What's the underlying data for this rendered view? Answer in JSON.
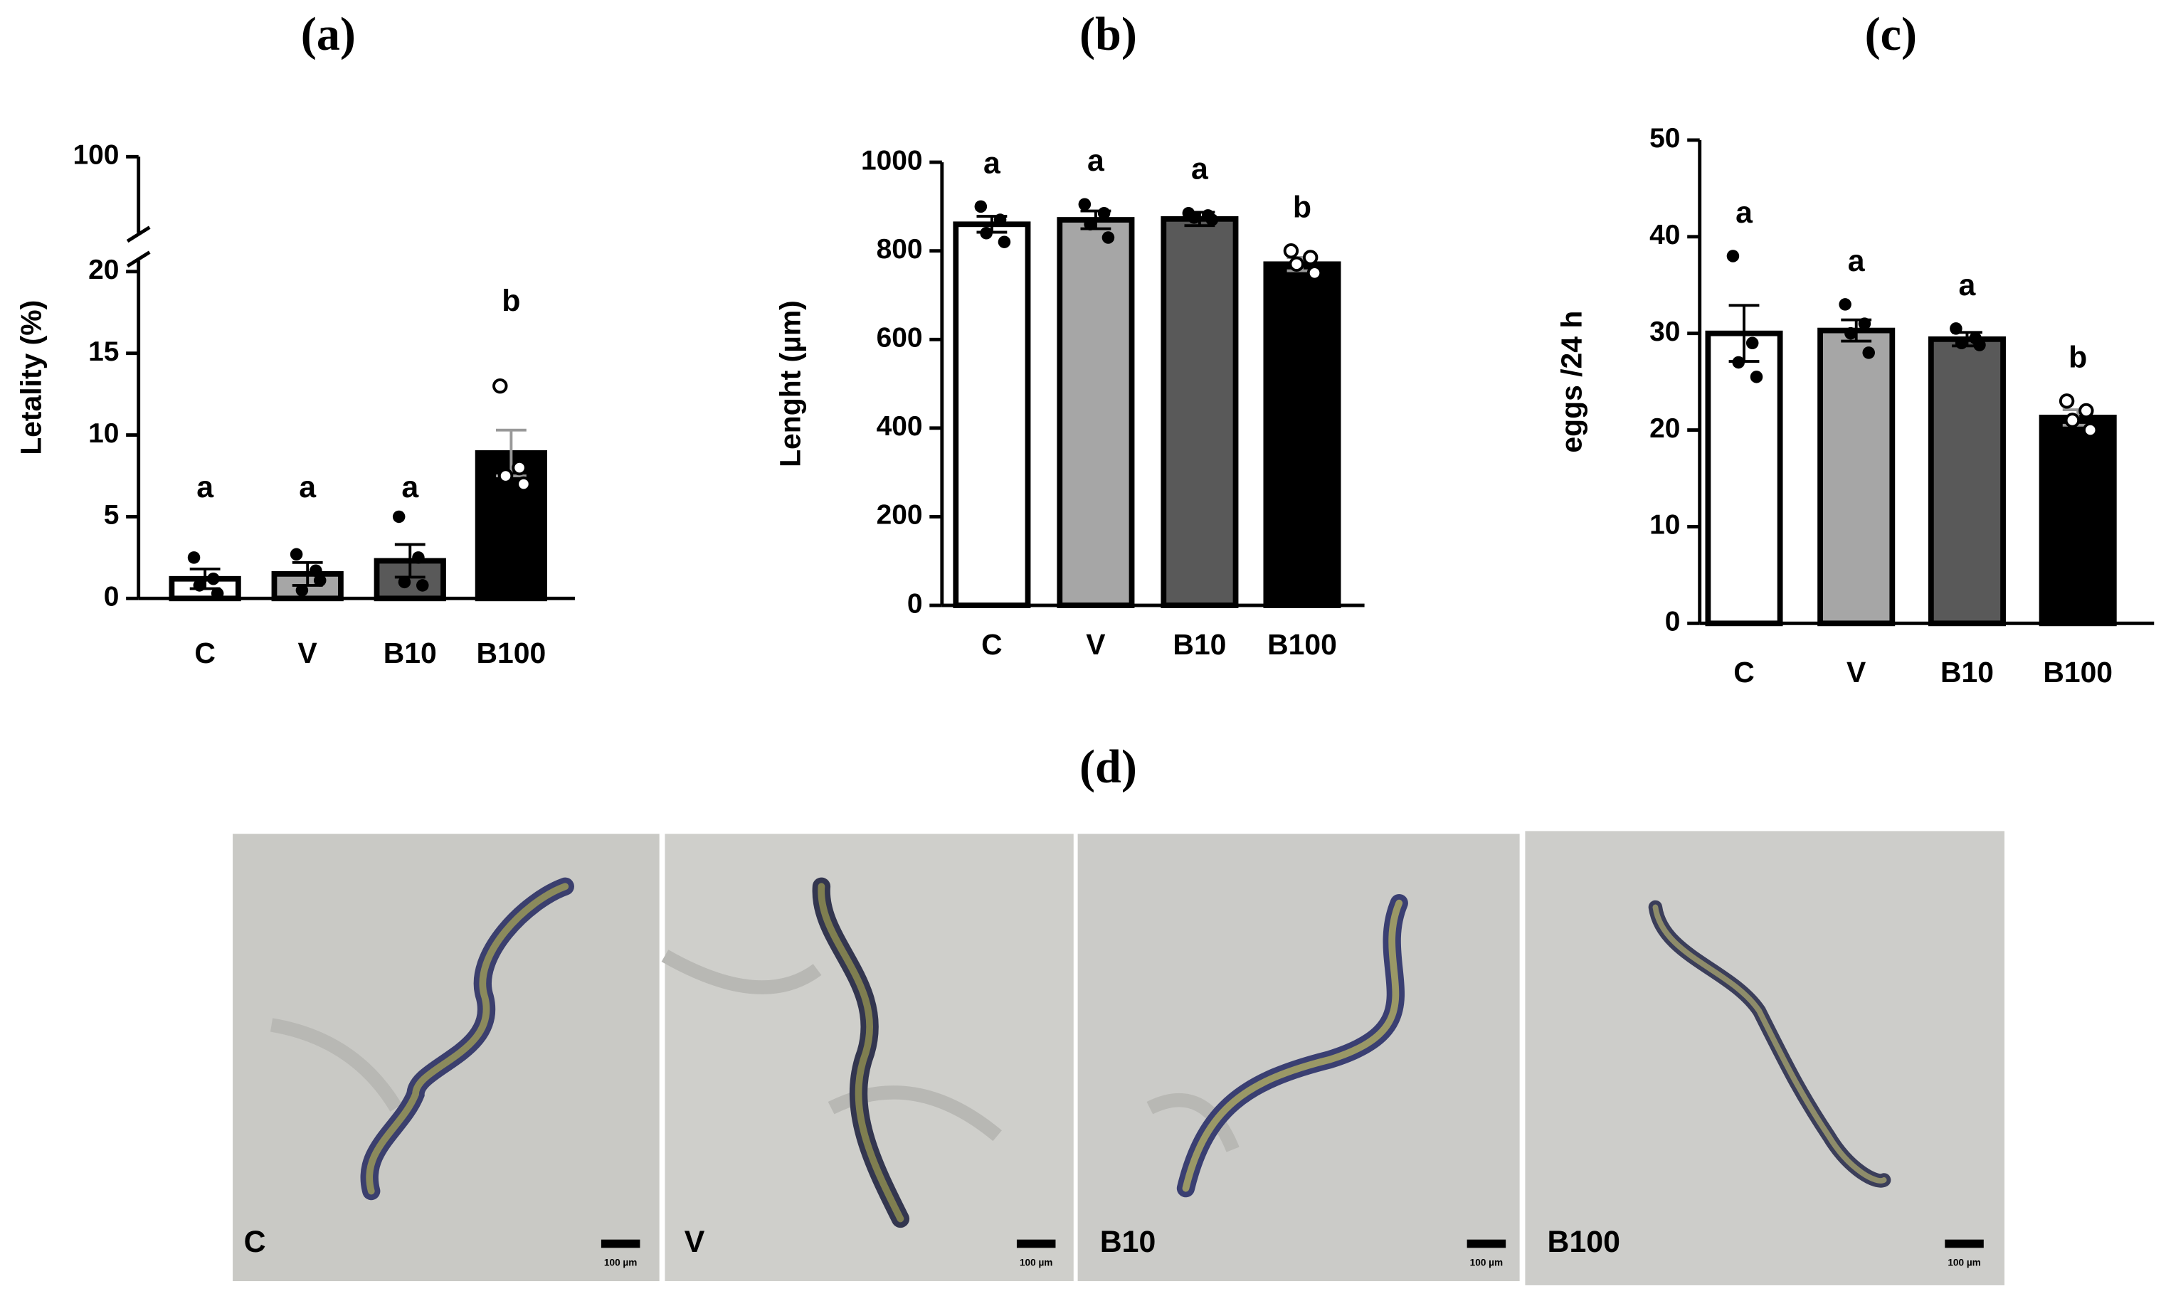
{
  "chart_data": [
    {
      "type": "bar",
      "title": "(a)",
      "ylabel": "Letality (%)",
      "categories": [
        "C",
        "V",
        "B10",
        "B100"
      ],
      "values": [
        1.2,
        1.5,
        2.3,
        8.9
      ],
      "errors": [
        0.6,
        0.7,
        1.0,
        1.4
      ],
      "points": [
        [
          2.5,
          1.2,
          0.8,
          0.3
        ],
        [
          2.7,
          1.7,
          0.5,
          1.1
        ],
        [
          5,
          2.5,
          1.0,
          0.8
        ],
        [
          13,
          8,
          7.5,
          7
        ]
      ],
      "open_markers": [
        false,
        false,
        false,
        true
      ],
      "annotations": [
        "a",
        "a",
        "a",
        "b"
      ],
      "colors": [
        "#ffffff",
        "#a6a6a6",
        "#595959",
        "#000000"
      ],
      "ylim": [
        0,
        100
      ],
      "ybreak": [
        20,
        100
      ],
      "yticks": [
        0,
        5,
        10,
        15,
        20,
        100
      ]
    },
    {
      "type": "bar",
      "title": "(b)",
      "ylabel": "Lenght (µm)",
      "categories": [
        "C",
        "V",
        "B10",
        "B100"
      ],
      "values": [
        860,
        870,
        872,
        770
      ],
      "errors": [
        18,
        20,
        15,
        15
      ],
      "points": [
        [
          900,
          870,
          840,
          820
        ],
        [
          905,
          885,
          860,
          830
        ],
        [
          885,
          880,
          875,
          870
        ],
        [
          800,
          785,
          770,
          750
        ]
      ],
      "open_markers": [
        false,
        false,
        false,
        true
      ],
      "annotations": [
        "a",
        "a",
        "a",
        "b"
      ],
      "colors": [
        "#ffffff",
        "#a6a6a6",
        "#595959",
        "#000000"
      ],
      "ylim": [
        0,
        1000
      ],
      "yticks": [
        0,
        200,
        400,
        600,
        800,
        1000
      ]
    },
    {
      "type": "bar",
      "title": "(c)",
      "ylabel": "eggs /24 h",
      "categories": [
        "C",
        "V",
        "B10",
        "B100"
      ],
      "values": [
        30,
        30.3,
        29.4,
        21.3
      ],
      "errors": [
        2.9,
        1.1,
        0.7,
        0.8
      ],
      "points": [
        [
          38,
          29,
          27,
          25.5
        ],
        [
          33,
          31,
          30,
          28
        ],
        [
          30.5,
          29.5,
          29,
          28.8
        ],
        [
          23,
          22,
          21,
          20
        ]
      ],
      "open_markers": [
        false,
        false,
        false,
        true
      ],
      "annotations": [
        "a",
        "a",
        "a",
        "b"
      ],
      "colors": [
        "#ffffff",
        "#a6a6a6",
        "#595959",
        "#000000"
      ],
      "ylim": [
        0,
        50
      ],
      "yticks": [
        0,
        10,
        20,
        30,
        40,
        50
      ]
    }
  ],
  "figure_d": {
    "title": "(d)",
    "panels": [
      {
        "label": "C",
        "scale": "100 µm"
      },
      {
        "label": "V",
        "scale": "100 µm"
      },
      {
        "label": "B10",
        "scale": "100 µm"
      },
      {
        "label": "B100",
        "scale": "100 µm"
      }
    ]
  }
}
